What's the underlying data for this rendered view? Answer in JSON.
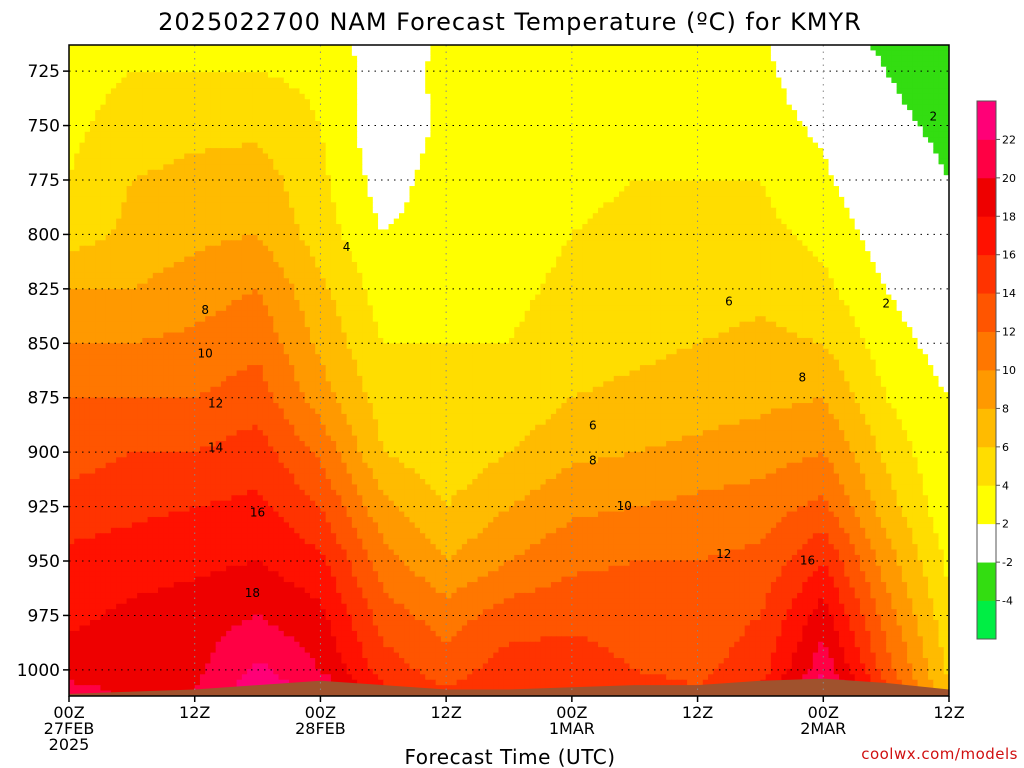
{
  "chart_data": {
    "type": "heatmap",
    "title": "2025022700 NAM Forecast Temperature (ºC) for KMYR",
    "xlabel": "Forecast Time (UTC)",
    "ylabel": "",
    "credit": "coolwx.com/models",
    "x_unit": "forecast hour",
    "xlim": [
      0,
      84
    ],
    "y_unit": "hPa",
    "ylim": [
      1012,
      713
    ],
    "x_ticks": [
      {
        "hour": 0,
        "lines": [
          "00Z",
          "27FEB",
          "2025"
        ]
      },
      {
        "hour": 12,
        "lines": [
          "12Z"
        ]
      },
      {
        "hour": 24,
        "lines": [
          "00Z",
          "28FEB"
        ]
      },
      {
        "hour": 36,
        "lines": [
          "12Z"
        ]
      },
      {
        "hour": 48,
        "lines": [
          "00Z",
          "1MAR"
        ]
      },
      {
        "hour": 60,
        "lines": [
          "12Z"
        ]
      },
      {
        "hour": 72,
        "lines": [
          "00Z",
          "2MAR"
        ]
      },
      {
        "hour": 84,
        "lines": [
          "12Z"
        ]
      }
    ],
    "y_ticks": [
      725,
      750,
      775,
      800,
      825,
      850,
      875,
      900,
      925,
      950,
      975,
      1000
    ],
    "grid": true,
    "colorbar": {
      "placement": "right",
      "levels": [
        -6,
        -4,
        -2,
        2,
        4,
        6,
        8,
        10,
        12,
        14,
        16,
        18,
        20,
        22,
        24
      ],
      "labels": [
        "-4",
        "-2",
        "2",
        "4",
        "6",
        "8",
        "10",
        "12",
        "14",
        "16",
        "18",
        "20",
        "22"
      ],
      "colors": [
        "#00ee44",
        "#33dd11",
        "#ffffff",
        "#ffff00",
        "#ffdd00",
        "#ffbb00",
        "#ff9900",
        "#ff7700",
        "#ff5500",
        "#ff3300",
        "#ff1100",
        "#ee0000",
        "#ff0044",
        "#ff0077"
      ]
    },
    "surface_color": "#a0522d",
    "surface_pressure": [
      {
        "hour": 0,
        "hPa": 1011
      },
      {
        "hour": 6,
        "hPa": 1010
      },
      {
        "hour": 12,
        "hPa": 1009
      },
      {
        "hour": 18,
        "hPa": 1007
      },
      {
        "hour": 24,
        "hPa": 1005
      },
      {
        "hour": 30,
        "hPa": 1007
      },
      {
        "hour": 36,
        "hPa": 1009
      },
      {
        "hour": 42,
        "hPa": 1009
      },
      {
        "hour": 48,
        "hPa": 1008
      },
      {
        "hour": 54,
        "hPa": 1007
      },
      {
        "hour": 60,
        "hPa": 1007
      },
      {
        "hour": 66,
        "hPa": 1005
      },
      {
        "hour": 72,
        "hPa": 1004
      },
      {
        "hour": 78,
        "hPa": 1006
      },
      {
        "hour": 84,
        "hPa": 1009
      }
    ],
    "profiles": [
      {
        "hour": 0,
        "points": [
          [
            1011,
            21
          ],
          [
            1000,
            19
          ],
          [
            975,
            17.5
          ],
          [
            950,
            16.5
          ],
          [
            925,
            15
          ],
          [
            900,
            13
          ],
          [
            875,
            12
          ],
          [
            850,
            10
          ],
          [
            825,
            8
          ],
          [
            800,
            5
          ],
          [
            775,
            4
          ],
          [
            750,
            3.5
          ],
          [
            725,
            3
          ],
          [
            713,
            3
          ]
        ]
      },
      {
        "hour": 6,
        "points": [
          [
            1010,
            19.5
          ],
          [
            1000,
            19
          ],
          [
            975,
            18.5
          ],
          [
            950,
            17
          ],
          [
            925,
            15.5
          ],
          [
            900,
            14
          ],
          [
            875,
            12
          ],
          [
            850,
            10
          ],
          [
            825,
            8
          ],
          [
            800,
            6.5
          ],
          [
            775,
            6
          ],
          [
            750,
            5
          ],
          [
            725,
            4
          ],
          [
            713,
            3.5
          ]
        ]
      },
      {
        "hour": 12,
        "points": [
          [
            1009,
            20
          ],
          [
            1000,
            19.5
          ],
          [
            975,
            19
          ],
          [
            950,
            17.5
          ],
          [
            925,
            16
          ],
          [
            900,
            14
          ],
          [
            875,
            12
          ],
          [
            850,
            10.5
          ],
          [
            825,
            9
          ],
          [
            800,
            7.5
          ],
          [
            775,
            6.5
          ],
          [
            750,
            5.5
          ],
          [
            725,
            4
          ],
          [
            713,
            3.5
          ]
        ]
      },
      {
        "hour": 18,
        "points": [
          [
            1007,
            23
          ],
          [
            1000,
            22.5
          ],
          [
            975,
            20
          ],
          [
            950,
            18
          ],
          [
            925,
            16.5
          ],
          [
            900,
            15
          ],
          [
            875,
            13
          ],
          [
            850,
            11.5
          ],
          [
            825,
            10
          ],
          [
            800,
            8
          ],
          [
            775,
            7
          ],
          [
            750,
            5.5
          ],
          [
            725,
            4
          ],
          [
            713,
            3.5
          ]
        ]
      },
      {
        "hour": 24,
        "points": [
          [
            1005,
            21
          ],
          [
            1000,
            20
          ],
          [
            975,
            18.5
          ],
          [
            950,
            16.5
          ],
          [
            925,
            14
          ],
          [
            900,
            11.5
          ],
          [
            875,
            9
          ],
          [
            850,
            7.5
          ],
          [
            825,
            6.5
          ],
          [
            800,
            5
          ],
          [
            775,
            4.5
          ],
          [
            750,
            4
          ],
          [
            725,
            3.5
          ],
          [
            713,
            3.5
          ]
        ]
      },
      {
        "hour": 30,
        "points": [
          [
            1007,
            16
          ],
          [
            1000,
            15
          ],
          [
            975,
            13
          ],
          [
            950,
            11
          ],
          [
            925,
            8.5
          ],
          [
            900,
            6
          ],
          [
            875,
            5
          ],
          [
            850,
            4
          ],
          [
            825,
            3
          ],
          [
            800,
            2
          ],
          [
            775,
            1
          ],
          [
            750,
            0.5
          ],
          [
            725,
            1
          ],
          [
            713,
            0.5
          ]
        ]
      },
      {
        "hour": 36,
        "points": [
          [
            1009,
            14
          ],
          [
            1000,
            13
          ],
          [
            975,
            11
          ],
          [
            950,
            8
          ],
          [
            925,
            6
          ],
          [
            900,
            4.5
          ],
          [
            875,
            4
          ],
          [
            850,
            4
          ],
          [
            825,
            3.5
          ],
          [
            800,
            3
          ],
          [
            775,
            3
          ],
          [
            750,
            2.5
          ],
          [
            725,
            2.5
          ],
          [
            713,
            2.5
          ]
        ]
      },
      {
        "hour": 42,
        "points": [
          [
            1009,
            16
          ],
          [
            1000,
            15
          ],
          [
            975,
            13
          ],
          [
            950,
            10
          ],
          [
            925,
            8
          ],
          [
            900,
            6
          ],
          [
            875,
            4.5
          ],
          [
            850,
            4
          ],
          [
            825,
            3.5
          ],
          [
            800,
            3
          ],
          [
            775,
            3
          ],
          [
            750,
            3
          ],
          [
            725,
            3
          ],
          [
            713,
            2.5
          ]
        ]
      },
      {
        "hour": 48,
        "points": [
          [
            1008,
            16
          ],
          [
            1000,
            15
          ],
          [
            975,
            13.5
          ],
          [
            950,
            11.5
          ],
          [
            925,
            9.5
          ],
          [
            900,
            7.5
          ],
          [
            875,
            6
          ],
          [
            850,
            5
          ],
          [
            825,
            4.5
          ],
          [
            800,
            4
          ],
          [
            775,
            3.5
          ],
          [
            750,
            3
          ],
          [
            725,
            2.5
          ],
          [
            713,
            2.5
          ]
        ]
      },
      {
        "hour": 54,
        "points": [
          [
            1007,
            14.5
          ],
          [
            1000,
            14
          ],
          [
            975,
            13
          ],
          [
            950,
            12
          ],
          [
            925,
            10
          ],
          [
            900,
            8
          ],
          [
            875,
            6.5
          ],
          [
            850,
            5.5
          ],
          [
            825,
            5
          ],
          [
            800,
            4.5
          ],
          [
            775,
            4
          ],
          [
            750,
            3.5
          ],
          [
            725,
            3
          ],
          [
            713,
            2.5
          ]
        ]
      },
      {
        "hour": 60,
        "points": [
          [
            1007,
            14
          ],
          [
            1000,
            13.5
          ],
          [
            975,
            13
          ],
          [
            950,
            12
          ],
          [
            925,
            10.5
          ],
          [
            900,
            8.5
          ],
          [
            875,
            7
          ],
          [
            850,
            6
          ],
          [
            825,
            5
          ],
          [
            800,
            4.5
          ],
          [
            775,
            4
          ],
          [
            750,
            3.5
          ],
          [
            725,
            3
          ],
          [
            713,
            2.5
          ]
        ]
      },
      {
        "hour": 66,
        "points": [
          [
            1005,
            16
          ],
          [
            1000,
            15
          ],
          [
            975,
            14
          ],
          [
            950,
            12.5
          ],
          [
            925,
            11
          ],
          [
            900,
            9
          ],
          [
            875,
            7.5
          ],
          [
            850,
            6.5
          ],
          [
            825,
            5.5
          ],
          [
            800,
            4.5
          ],
          [
            775,
            4
          ],
          [
            750,
            3
          ],
          [
            725,
            2.5
          ],
          [
            713,
            2.5
          ]
        ]
      },
      {
        "hour": 72,
        "points": [
          [
            1004,
            22.5
          ],
          [
            1000,
            21.5
          ],
          [
            975,
            19
          ],
          [
            950,
            16
          ],
          [
            925,
            12.5
          ],
          [
            900,
            10
          ],
          [
            875,
            8
          ],
          [
            850,
            6
          ],
          [
            825,
            4.5
          ],
          [
            800,
            3.5
          ],
          [
            775,
            2.5
          ],
          [
            750,
            1.5
          ],
          [
            725,
            0.5
          ],
          [
            713,
            -0.5
          ]
        ]
      },
      {
        "hour": 78,
        "points": [
          [
            1006,
            14
          ],
          [
            1000,
            13
          ],
          [
            975,
            11
          ],
          [
            950,
            9
          ],
          [
            925,
            7
          ],
          [
            900,
            5.5
          ],
          [
            875,
            4
          ],
          [
            850,
            3
          ],
          [
            825,
            2
          ],
          [
            800,
            1
          ],
          [
            775,
            -0.5
          ],
          [
            750,
            -1.5
          ],
          [
            725,
            -2
          ],
          [
            713,
            -2.5
          ]
        ]
      },
      {
        "hour": 84,
        "points": [
          [
            1009,
            6
          ],
          [
            1000,
            5.5
          ],
          [
            975,
            4.5
          ],
          [
            950,
            3.5
          ],
          [
            925,
            2.5
          ],
          [
            900,
            2
          ],
          [
            875,
            2
          ],
          [
            850,
            1
          ],
          [
            825,
            0
          ],
          [
            800,
            -1
          ],
          [
            775,
            -2
          ],
          [
            750,
            -2.5
          ],
          [
            725,
            -3
          ],
          [
            713,
            -3
          ]
        ]
      }
    ],
    "contour_labels": [
      {
        "text": "4",
        "hour": 26.5,
        "hPa": 806
      },
      {
        "text": "8",
        "hour": 13,
        "hPa": 835
      },
      {
        "text": "10",
        "hour": 13,
        "hPa": 855
      },
      {
        "text": "12",
        "hour": 14,
        "hPa": 878
      },
      {
        "text": "14",
        "hour": 14,
        "hPa": 898
      },
      {
        "text": "16",
        "hour": 18,
        "hPa": 928
      },
      {
        "text": "18",
        "hour": 17.5,
        "hPa": 965
      },
      {
        "text": "6",
        "hour": 50,
        "hPa": 888
      },
      {
        "text": "8",
        "hour": 50,
        "hPa": 904
      },
      {
        "text": "10",
        "hour": 53,
        "hPa": 925
      },
      {
        "text": "12",
        "hour": 62.5,
        "hPa": 947
      },
      {
        "text": "16",
        "hour": 70.5,
        "hPa": 950
      },
      {
        "text": "6",
        "hour": 63,
        "hPa": 831
      },
      {
        "text": "8",
        "hour": 70,
        "hPa": 866
      },
      {
        "text": "2",
        "hour": 78,
        "hPa": 832
      },
      {
        "text": "2",
        "hour": 82.5,
        "hPa": 746
      }
    ]
  }
}
